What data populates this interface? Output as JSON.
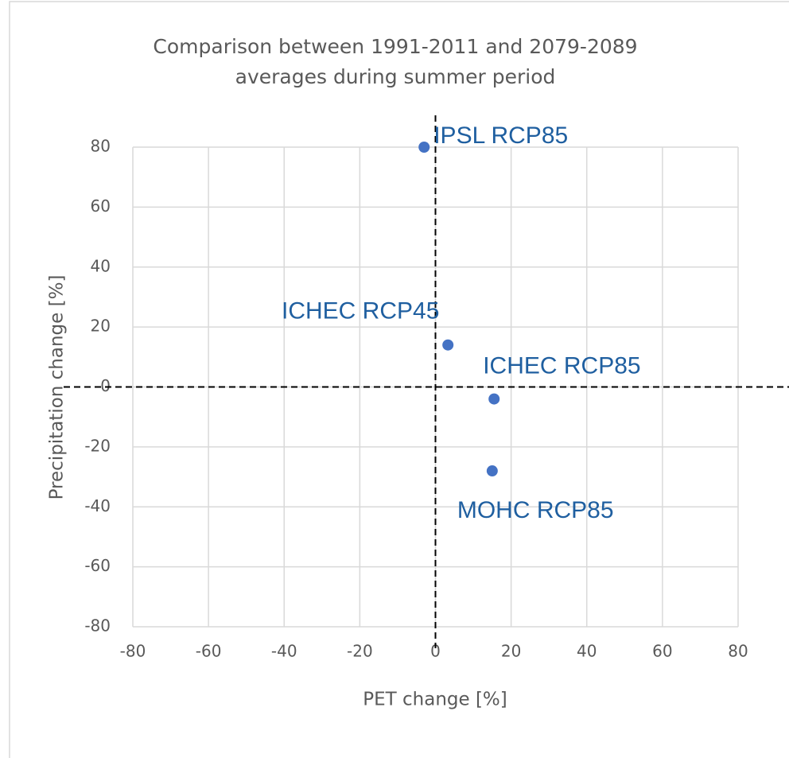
{
  "chart_data": {
    "type": "scatter",
    "title": [
      "Comparison between 1991-2011 and 2079-2089",
      "averages during summer period"
    ],
    "x_label": "PET change [%]",
    "y_label": "Precipitation change [%]",
    "x": [
      -3,
      3.3,
      15.5,
      15
    ],
    "values": [
      80,
      14,
      -4,
      -28
    ],
    "labels": [
      "IPSL RCP85",
      "ICHEC RCP45",
      "ICHEC RCP85",
      "MOHC RCP85"
    ],
    "color": "#4472c4",
    "xlim": [
      -80,
      80
    ],
    "xticks": [
      -80,
      -60,
      -40,
      -20,
      0,
      20,
      40,
      60,
      80
    ],
    "ylim": [
      -80,
      80
    ],
    "yticks": [
      -80,
      -60,
      -40,
      -20,
      0,
      20,
      40,
      60,
      80
    ],
    "grid": true,
    "vline": 0,
    "hline": 0
  }
}
